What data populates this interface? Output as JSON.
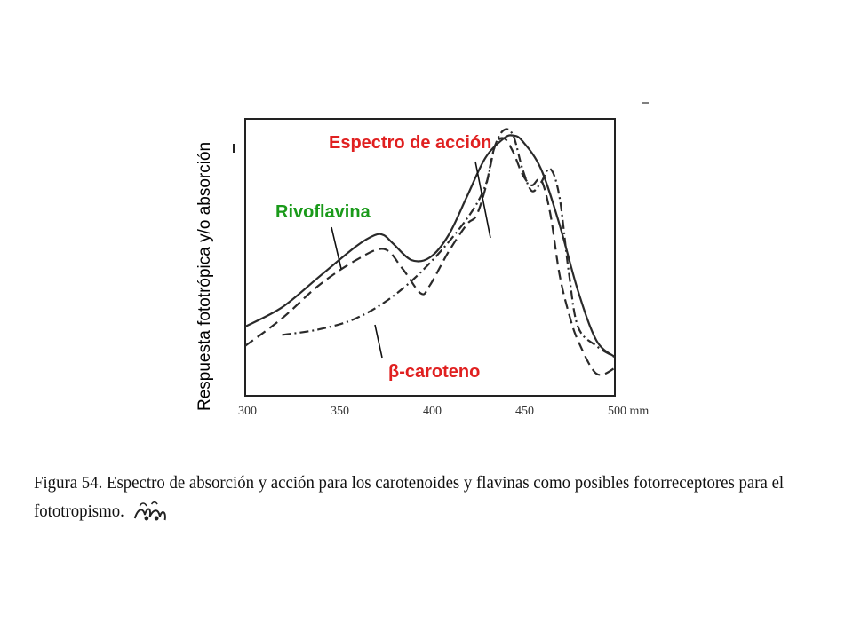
{
  "chart_data": {
    "type": "line",
    "ylabel": "Respuesta fototrópica y/o absorción",
    "xlabel": "",
    "x_unit": "mm",
    "xlim": [
      300,
      500
    ],
    "ylim": [
      0,
      1
    ],
    "x_ticks": [
      300,
      350,
      400,
      450,
      500
    ],
    "x_tick_labels": [
      "300",
      "350",
      "400",
      "450",
      "500 mm"
    ],
    "grid": false,
    "series": [
      {
        "name": "Rivoflavina",
        "style": "solid",
        "x": [
          300,
          320,
          340,
          360,
          370,
          375,
          380,
          390,
          400,
          410,
          420,
          430,
          440,
          445,
          450,
          460,
          470,
          480,
          490,
          500
        ],
        "y": [
          0.25,
          0.32,
          0.43,
          0.54,
          0.58,
          0.58,
          0.55,
          0.49,
          0.5,
          0.58,
          0.72,
          0.86,
          0.93,
          0.94,
          0.92,
          0.82,
          0.62,
          0.38,
          0.2,
          0.14
        ]
      },
      {
        "name": "Espectro de acción",
        "style": "dashed",
        "x": [
          300,
          320,
          340,
          360,
          375,
          385,
          395,
          400,
          410,
          420,
          425,
          430,
          435,
          440,
          445,
          450,
          455,
          460,
          465,
          470,
          475,
          480,
          490,
          500
        ],
        "y": [
          0.18,
          0.28,
          0.4,
          0.49,
          0.53,
          0.46,
          0.37,
          0.4,
          0.52,
          0.62,
          0.65,
          0.75,
          0.9,
          0.93,
          0.88,
          0.8,
          0.76,
          0.78,
          0.66,
          0.44,
          0.3,
          0.2,
          0.08,
          0.1
        ]
      },
      {
        "name": "β-caroteno",
        "style": "dash-dot",
        "x": [
          320,
          340,
          360,
          380,
          400,
          420,
          430,
          435,
          440,
          445,
          450,
          455,
          460,
          465,
          470,
          475,
          480,
          490,
          500
        ],
        "y": [
          0.22,
          0.24,
          0.28,
          0.36,
          0.48,
          0.64,
          0.76,
          0.9,
          0.96,
          0.94,
          0.82,
          0.74,
          0.77,
          0.82,
          0.72,
          0.45,
          0.25,
          0.18,
          0.14
        ]
      }
    ],
    "annotations": [
      {
        "text": "Espectro de acción",
        "color": "#e02020"
      },
      {
        "text": "Rivoflavina",
        "color": "#1a9a1a"
      },
      {
        "text": "β-caroteno",
        "color": "#e02020"
      }
    ]
  },
  "caption": {
    "prefix": "Figura 54.",
    "text": "Espectro de absorción y acción para los carotenoides y flavinas como posibles fotorreceptores para el fototropismo."
  }
}
